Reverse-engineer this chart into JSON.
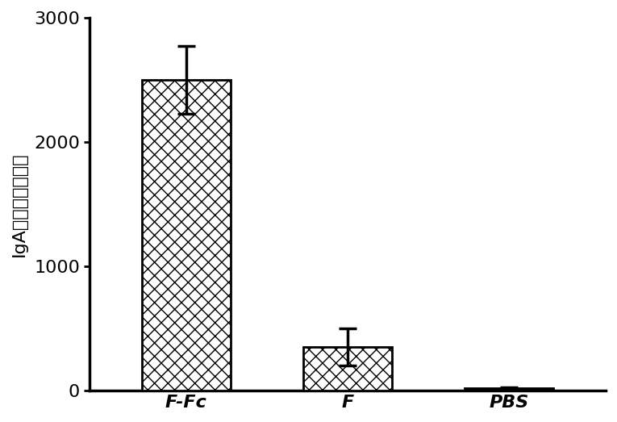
{
  "categories": [
    "F-Fc",
    "F",
    "PBS"
  ],
  "values": [
    2500,
    350,
    20
  ],
  "errors": [
    270,
    150,
    10
  ],
  "bar_colors": [
    "white",
    "white",
    "black"
  ],
  "bar_edgecolors": [
    "black",
    "black",
    "black"
  ],
  "ylabel": "IgA滴度（肺洗液）",
  "ylim": [
    0,
    3000
  ],
  "yticks": [
    0,
    1000,
    2000,
    3000
  ],
  "bar_width": 0.55,
  "figsize": [
    7.65,
    5.23
  ],
  "dpi": 100,
  "background_color": "white",
  "tick_fontsize": 16,
  "label_fontsize": 16,
  "spine_linewidth": 2.5,
  "error_linewidth": 2.5,
  "error_capsize": 8,
  "error_capthick": 2.5
}
